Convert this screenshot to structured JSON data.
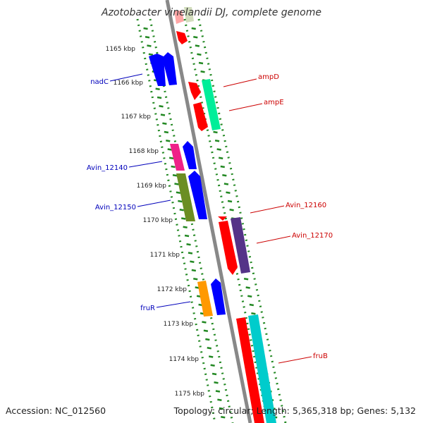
{
  "title": "Azotobacter vinelandii DJ, complete genome",
  "footer": {
    "accession": "Accession: NC_012560",
    "topology": "Topology: circular; Length: 5,365,318 bp; Genes: 5,132"
  },
  "tick_labels": [
    "1165 kbp",
    "1166 kbp",
    "1167 kbp",
    "1168 kbp",
    "1169 kbp",
    "1170 kbp",
    "1171 kbp",
    "1172 kbp",
    "1173 kbp",
    "1174 kbp",
    "1175 kbp"
  ],
  "gene_labels": {
    "left": [
      {
        "name": "nadC",
        "color": "#0000bb"
      },
      {
        "name": "Avin_12140",
        "color": "#0000bb"
      },
      {
        "name": "Avin_12150",
        "color": "#0000bb"
      },
      {
        "name": "fruR",
        "color": "#0000bb"
      }
    ],
    "right": [
      {
        "name": "ampD",
        "color": "#cc0000"
      },
      {
        "name": "ampE",
        "color": "#cc0000"
      },
      {
        "name": "Avin_12160",
        "color": "#cc0000"
      },
      {
        "name": "Avin_12170",
        "color": "#cc0000"
      },
      {
        "name": "fruB",
        "color": "#cc0000"
      }
    ]
  },
  "colors": {
    "backbone": "#888888",
    "ticks": "#228822",
    "gene_red": "#ff0000",
    "gene_blue": "#0000ff",
    "gene_aqua": "#00ee99",
    "gene_pink": "#ee2288",
    "gene_olive": "#6b8e23",
    "gene_purple": "#553388",
    "gene_orange": "#ff9900",
    "gene_cyan": "#00cccc"
  }
}
